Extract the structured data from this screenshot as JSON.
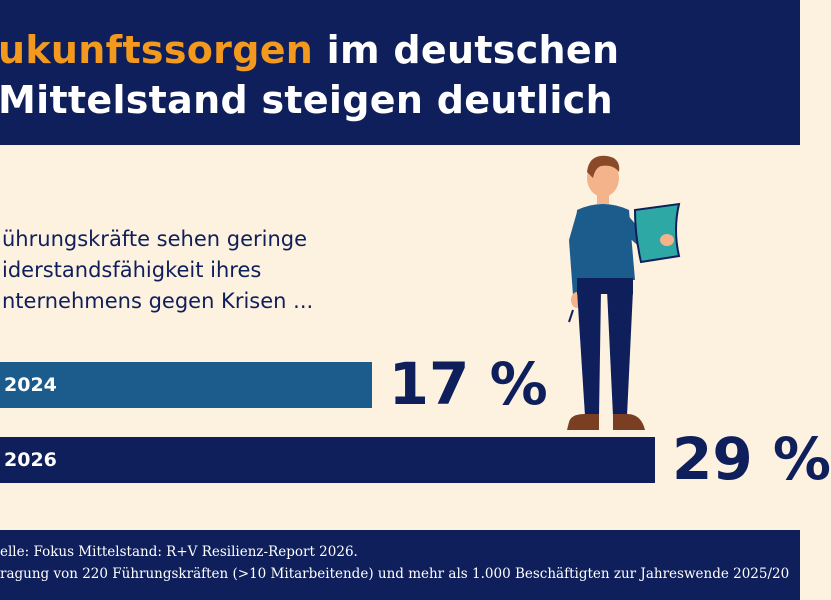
{
  "header": {
    "title_line1_accent": "ukunftssorgen",
    "title_line1_rest": " im deutschen",
    "title_line2": "Mittelstand steigen deutlich",
    "accent_color": "#f39a1e"
  },
  "subtitle": [
    "ührungskräfte sehen geringe",
    "iderstandsfähigkeit ihres",
    "nternehmens gegen Krisen ..."
  ],
  "chart_data": {
    "type": "bar",
    "orientation": "horizontal",
    "categories": [
      "2024",
      "2026"
    ],
    "values": [
      17,
      29
    ],
    "value_labels": [
      "17 %",
      "29 %"
    ],
    "colors": [
      "#1b5c8c",
      "#0f1f5b"
    ]
  },
  "footer": {
    "line1": "elle: Fokus Mittelstand: R+V Resilienz-Report 2026.",
    "line2": "ragung von 220 Führungskräften (>10 Mitarbeitende) und mehr als 1.000 Beschäftigten zur Jahreswende 2025/20"
  },
  "illustration": "man-reading-document-icon"
}
